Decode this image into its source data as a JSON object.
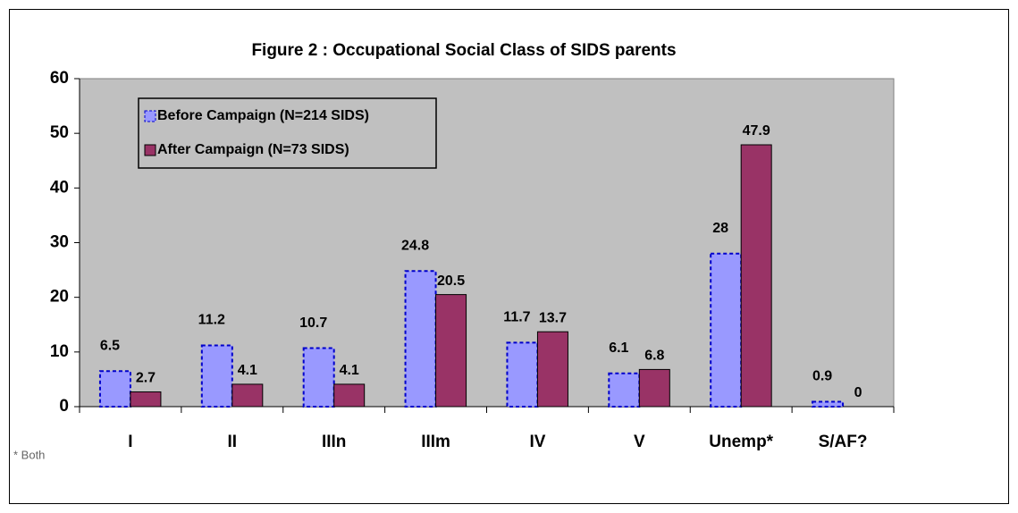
{
  "chart_data": {
    "type": "bar",
    "title": "Figure 2 : Occupational Social Class of SIDS parents",
    "footnote": "* Both",
    "categories": [
      "I",
      "II",
      "IIIn",
      "IIIm",
      "IV",
      "V",
      "Unemp*",
      "S/AF?"
    ],
    "series": [
      {
        "name": "Before Campaign (N=214 SIDS)",
        "color": "#9999ff",
        "values": [
          6.5,
          11.2,
          10.7,
          24.8,
          11.7,
          6.1,
          28,
          0.9
        ]
      },
      {
        "name": "After Campaign (N=73 SIDS)",
        "color": "#993366",
        "values": [
          2.7,
          4.1,
          4.1,
          20.5,
          13.7,
          6.8,
          47.9,
          0
        ]
      }
    ],
    "ylim": [
      0,
      60
    ],
    "yticks": [
      0,
      10,
      20,
      30,
      40,
      50,
      60
    ],
    "plot_background": "#c0c0c0",
    "legend": "upper left"
  }
}
